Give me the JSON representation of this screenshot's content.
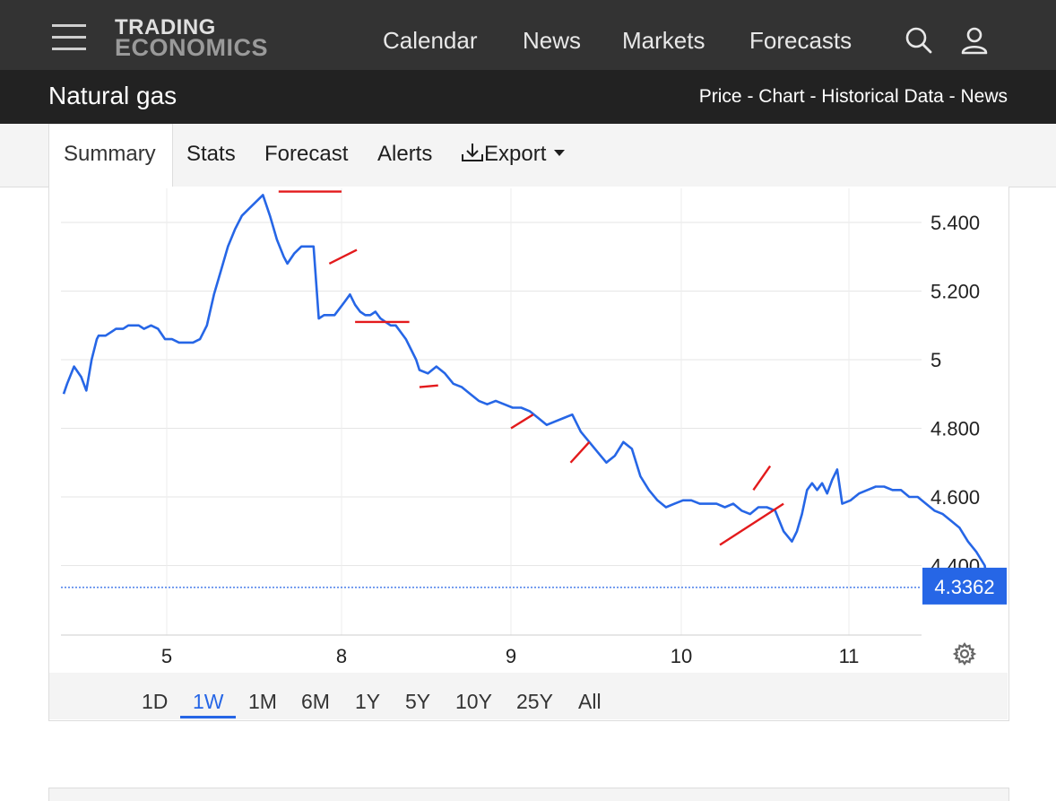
{
  "header": {
    "logo_line1": "TRADING",
    "logo_line2": "ECONOMICS",
    "nav": [
      "Calendar",
      "News",
      "Markets",
      "Forecasts"
    ]
  },
  "title_bar": {
    "title": "Natural gas",
    "breadcrumb": "Price - Chart - Historical Data - News"
  },
  "tabs": {
    "items": [
      "Summary",
      "Stats",
      "Forecast",
      "Alerts"
    ],
    "export_label": "Export",
    "active": "Summary"
  },
  "range_buttons": {
    "items": [
      "1D",
      "1W",
      "1M",
      "6M",
      "1Y",
      "5Y",
      "10Y",
      "25Y",
      "All"
    ],
    "active": "1W"
  },
  "chart_data": {
    "type": "line",
    "title": "",
    "xlabel": "",
    "ylabel": "",
    "x_ticks": [
      "5",
      "8",
      "9",
      "10",
      "11"
    ],
    "y_ticks": [
      "4.400",
      "4.600",
      "4.800",
      "5",
      "5.200",
      "5.400"
    ],
    "ylim": [
      4.2,
      5.5
    ],
    "current_price": 4.3362,
    "current_price_label": "4.3362",
    "line_color": "#2666e6",
    "annotation_color": "#e31a1c",
    "grid": true,
    "series": [
      {
        "x": [
          0,
          0.02,
          0.06,
          0.1,
          0.13,
          0.16,
          0.19,
          0.2,
          0.24,
          0.27,
          0.3,
          0.34,
          0.37,
          0.4,
          0.43,
          0.46,
          0.5,
          0.54,
          0.58,
          0.62,
          0.66,
          0.7,
          0.74,
          0.78,
          0.82,
          0.86,
          0.9,
          0.94,
          0.98,
          1.02,
          1.06,
          1.1,
          1.14,
          1.18,
          1.22,
          1.26,
          1.28,
          1.32,
          1.36,
          1.4,
          1.43,
          1.46,
          1.49,
          1.52,
          1.55,
          1.58,
          1.61,
          1.64,
          1.67,
          1.7,
          1.73,
          1.76,
          1.79,
          1.82,
          1.85,
          1.88,
          1.91,
          1.94,
          1.97,
          2.0,
          2.03,
          2.05,
          2.1,
          2.15,
          2.2,
          2.25,
          2.3,
          2.35,
          2.4,
          2.45,
          2.5,
          2.55,
          2.6,
          2.65,
          2.7,
          2.75,
          2.8,
          2.85,
          2.9,
          2.95,
          3.0,
          3.05,
          3.1,
          3.15,
          3.2,
          3.25,
          3.3,
          3.35,
          3.4,
          3.45,
          3.5,
          3.55,
          3.6,
          3.65,
          3.7,
          3.75,
          3.8,
          3.85,
          3.9,
          3.95,
          4.0,
          4.05,
          4.1,
          4.15,
          4.2,
          4.25,
          4.28,
          4.31,
          4.34,
          4.37,
          4.4,
          4.43,
          4.46,
          4.49,
          4.52,
          4.55,
          4.6,
          4.65,
          4.7,
          4.75,
          4.8,
          4.85,
          4.9,
          4.95,
          5.0,
          5.05,
          5.1,
          5.15,
          5.2,
          5.25,
          5.3,
          5.35,
          5.4,
          5.42
        ],
        "values": [
          4.9,
          4.93,
          4.98,
          4.95,
          4.91,
          5.0,
          5.06,
          5.07,
          5.07,
          5.08,
          5.09,
          5.09,
          5.1,
          5.1,
          5.1,
          5.09,
          5.1,
          5.09,
          5.06,
          5.06,
          5.05,
          5.05,
          5.05,
          5.06,
          5.1,
          5.19,
          5.26,
          5.33,
          5.38,
          5.42,
          5.44,
          5.46,
          5.48,
          5.42,
          5.35,
          5.3,
          5.28,
          5.31,
          5.33,
          5.33,
          5.33,
          5.12,
          5.13,
          5.13,
          5.13,
          5.15,
          5.17,
          5.19,
          5.16,
          5.14,
          5.13,
          5.13,
          5.14,
          5.12,
          5.11,
          5.1,
          5.1,
          5.08,
          5.06,
          5.03,
          5.0,
          4.97,
          4.96,
          4.98,
          4.96,
          4.93,
          4.92,
          4.9,
          4.88,
          4.87,
          4.88,
          4.87,
          4.86,
          4.86,
          4.85,
          4.83,
          4.81,
          4.82,
          4.83,
          4.84,
          4.79,
          4.76,
          4.73,
          4.7,
          4.72,
          4.76,
          4.74,
          4.66,
          4.62,
          4.59,
          4.57,
          4.58,
          4.59,
          4.59,
          4.58,
          4.58,
          4.58,
          4.57,
          4.58,
          4.56,
          4.55,
          4.57,
          4.57,
          4.56,
          4.5,
          4.47,
          4.5,
          4.55,
          4.62,
          4.64,
          4.62,
          4.64,
          4.61,
          4.65,
          4.68,
          4.58,
          4.59,
          4.61,
          4.62,
          4.63,
          4.63,
          4.62,
          4.62,
          4.6,
          4.6,
          4.58,
          4.56,
          4.55,
          4.53,
          4.51,
          4.47,
          4.44,
          4.4,
          4.3362
        ]
      }
    ],
    "x_tick_positions": [
      0.59,
      1.59,
      2.59,
      3.59,
      4.59
    ]
  }
}
